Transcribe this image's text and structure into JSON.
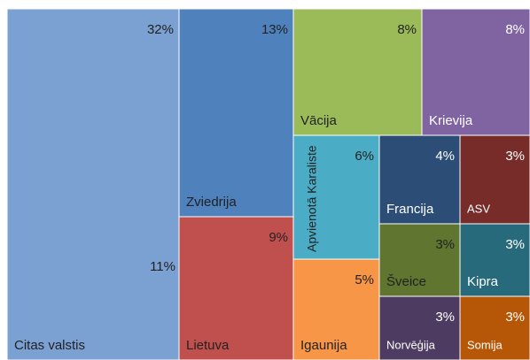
{
  "chart_data": {
    "type": "treemap",
    "categories": [
      "Citas valstis",
      "Zviedrija",
      "Lietuva",
      "Vācija",
      "Krievija",
      "Apvienotā Karaliste",
      "Igaunija",
      "Francija",
      "ASV",
      "Šveice",
      "Kipra",
      "Norvēģija",
      "Somija"
    ],
    "values": [
      32,
      13,
      9,
      8,
      8,
      6,
      5,
      4,
      3,
      3,
      3,
      3,
      3
    ],
    "value_labels": [
      "32%",
      "13%",
      "9%",
      "8%",
      "8%",
      "6%",
      "5%",
      "4%",
      "3%",
      "3%",
      "3%",
      "3%",
      "3%"
    ],
    "colors": [
      "#7ba0d2",
      "#4f81bd",
      "#c0504d",
      "#9bbb59",
      "#8064a2",
      "#4bacc6",
      "#f79646",
      "#2c4d75",
      "#772c2a",
      "#5f7530",
      "#276a7c",
      "#4d3b62",
      "#b65708"
    ],
    "annotation": "11%"
  }
}
